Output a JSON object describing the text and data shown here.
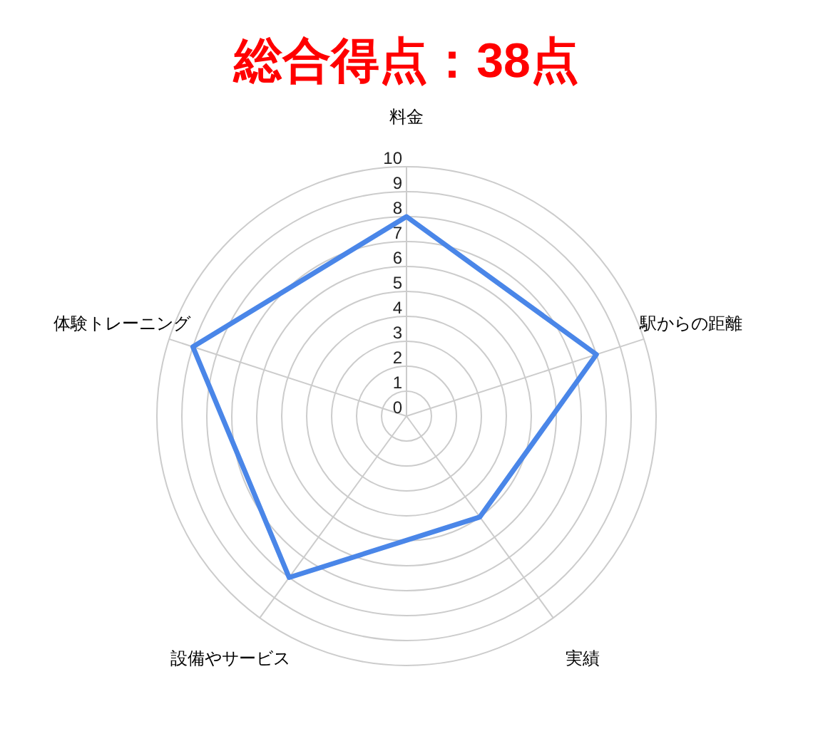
{
  "chart_data": {
    "type": "radar",
    "title": "総合得点：38点",
    "categories": [
      "料金",
      "駅からの距離",
      "実績",
      "設備やサービス",
      "体験トレーニング"
    ],
    "series": [
      {
        "color": "#4a86e8",
        "values": [
          8,
          8,
          5,
          8,
          9
        ]
      }
    ],
    "ylim": [
      0,
      10
    ],
    "yticks": [
      0,
      1,
      2,
      3,
      4,
      5,
      6,
      7,
      8,
      9,
      10
    ],
    "grid": true,
    "marker": "none",
    "line_style": "solid"
  }
}
